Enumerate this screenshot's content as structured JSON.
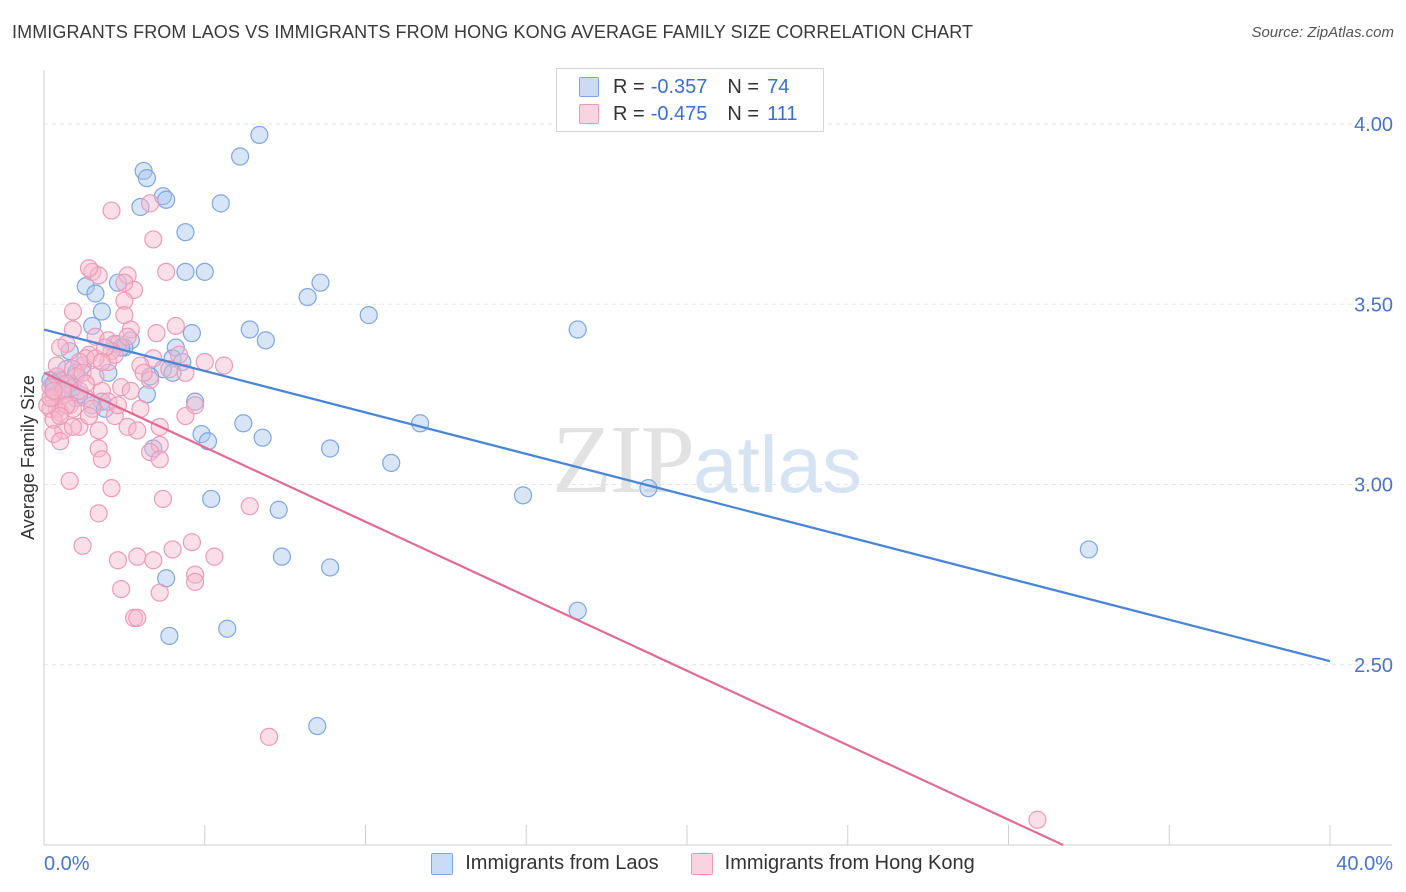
{
  "header": {
    "title": "IMMIGRANTS FROM LAOS VS IMMIGRANTS FROM HONG KONG AVERAGE FAMILY SIZE CORRELATION CHART",
    "source": "Source: ZipAtlas.com"
  },
  "watermark": {
    "zip": "ZIP",
    "atlas": "atlas"
  },
  "legend": {
    "rows": [
      {
        "r_label": "R =",
        "r_value": "-0.357",
        "n_label": "N =",
        "n_value": "74",
        "color": "#a9c6ee"
      },
      {
        "r_label": "R =",
        "r_value": "-0.475",
        "n_label": "N =",
        "n_value": "111",
        "color": "#f6b7cc"
      }
    ]
  },
  "bottom_legend": {
    "items": [
      {
        "label": "Immigrants from Laos",
        "color": "#a9c6ee"
      },
      {
        "label": "Immigrants from Hong Kong",
        "color": "#f6b7cc"
      }
    ]
  },
  "chart_data": {
    "type": "scatter",
    "title": "IMMIGRANTS FROM LAOS VS IMMIGRANTS FROM HONG KONG AVERAGE FAMILY SIZE CORRELATION CHART",
    "xlabel": "",
    "ylabel": "Average Family Size",
    "xlim": [
      0,
      40
    ],
    "ylim": [
      2.0,
      4.15
    ],
    "x_tick_labels": [
      "0.0%",
      "40.0%"
    ],
    "y_ticks": [
      2.5,
      3.0,
      3.5,
      4.0
    ],
    "y_tick_labels": [
      "2.50",
      "3.00",
      "3.50",
      "4.00"
    ],
    "grid": true,
    "series": [
      {
        "name": "Immigrants from Laos",
        "color": "#4a86d6",
        "fill": "#a9c6ee",
        "trend": {
          "x": [
            0,
            40
          ],
          "y": [
            3.43,
            2.51
          ]
        },
        "points": [
          [
            6.7,
            3.97
          ],
          [
            6.1,
            3.91
          ],
          [
            3.1,
            3.87
          ],
          [
            3.2,
            3.85
          ],
          [
            3.7,
            3.8
          ],
          [
            3.8,
            3.79
          ],
          [
            5.5,
            3.78
          ],
          [
            3.0,
            3.77
          ],
          [
            4.4,
            3.7
          ],
          [
            5.0,
            3.59
          ],
          [
            4.4,
            3.59
          ],
          [
            8.6,
            3.56
          ],
          [
            2.3,
            3.56
          ],
          [
            1.3,
            3.55
          ],
          [
            1.6,
            3.53
          ],
          [
            8.2,
            3.52
          ],
          [
            10.1,
            3.47
          ],
          [
            1.8,
            3.48
          ],
          [
            1.5,
            3.44
          ],
          [
            6.4,
            3.43
          ],
          [
            16.6,
            3.43
          ],
          [
            4.6,
            3.42
          ],
          [
            6.9,
            3.4
          ],
          [
            2.7,
            3.4
          ],
          [
            2.2,
            3.39
          ],
          [
            2.5,
            3.38
          ],
          [
            4.1,
            3.38
          ],
          [
            0.8,
            3.37
          ],
          [
            4.0,
            3.35
          ],
          [
            4.3,
            3.34
          ],
          [
            1.2,
            3.33
          ],
          [
            0.7,
            3.32
          ],
          [
            3.7,
            3.32
          ],
          [
            1.0,
            3.31
          ],
          [
            2.0,
            3.31
          ],
          [
            4.0,
            3.31
          ],
          [
            0.4,
            3.3
          ],
          [
            0.2,
            3.29
          ],
          [
            0.5,
            3.29
          ],
          [
            0.8,
            3.28
          ],
          [
            0.3,
            3.27
          ],
          [
            0.6,
            3.26
          ],
          [
            0.4,
            3.25
          ],
          [
            3.2,
            3.25
          ],
          [
            1.0,
            3.24
          ],
          [
            1.8,
            3.23
          ],
          [
            4.7,
            3.23
          ],
          [
            1.5,
            3.22
          ],
          [
            1.9,
            3.21
          ],
          [
            6.2,
            3.17
          ],
          [
            11.7,
            3.17
          ],
          [
            4.9,
            3.14
          ],
          [
            6.8,
            3.13
          ],
          [
            5.1,
            3.12
          ],
          [
            8.9,
            3.1
          ],
          [
            3.4,
            3.1
          ],
          [
            10.8,
            3.06
          ],
          [
            18.8,
            2.99
          ],
          [
            14.9,
            2.97
          ],
          [
            5.2,
            2.96
          ],
          [
            7.3,
            2.93
          ],
          [
            32.5,
            2.82
          ],
          [
            7.4,
            2.8
          ],
          [
            8.9,
            2.77
          ],
          [
            3.8,
            2.74
          ],
          [
            16.6,
            2.65
          ],
          [
            5.7,
            2.6
          ],
          [
            3.9,
            2.58
          ],
          [
            8.5,
            2.33
          ],
          [
            0.3,
            3.28
          ],
          [
            0.9,
            3.27
          ],
          [
            2.4,
            3.38
          ],
          [
            3.3,
            3.3
          ],
          [
            1.1,
            3.25
          ]
        ]
      },
      {
        "name": "Immigrants from Hong Kong",
        "color": "#e06b93",
        "fill": "#f6b7cc",
        "trend": {
          "x": [
            0,
            31.7
          ],
          "y": [
            3.31,
            2.0
          ]
        },
        "points": [
          [
            2.1,
            3.76
          ],
          [
            3.3,
            3.78
          ],
          [
            3.4,
            3.68
          ],
          [
            1.5,
            3.59
          ],
          [
            2.6,
            3.58
          ],
          [
            3.8,
            3.59
          ],
          [
            1.7,
            3.58
          ],
          [
            1.4,
            3.6
          ],
          [
            2.8,
            3.54
          ],
          [
            2.5,
            3.51
          ],
          [
            0.9,
            3.48
          ],
          [
            2.5,
            3.47
          ],
          [
            4.1,
            3.44
          ],
          [
            0.9,
            3.43
          ],
          [
            2.7,
            3.43
          ],
          [
            1.6,
            3.41
          ],
          [
            2.0,
            3.4
          ],
          [
            2.3,
            3.39
          ],
          [
            0.7,
            3.39
          ],
          [
            0.5,
            3.38
          ],
          [
            2.1,
            3.37
          ],
          [
            1.4,
            3.36
          ],
          [
            1.3,
            3.35
          ],
          [
            2.0,
            3.34
          ],
          [
            3.4,
            3.35
          ],
          [
            5.0,
            3.34
          ],
          [
            3.0,
            3.33
          ],
          [
            1.1,
            3.34
          ],
          [
            5.6,
            3.33
          ],
          [
            0.9,
            3.32
          ],
          [
            3.9,
            3.32
          ],
          [
            1.6,
            3.35
          ],
          [
            4.4,
            3.31
          ],
          [
            1.0,
            3.3
          ],
          [
            0.4,
            3.3
          ],
          [
            3.3,
            3.29
          ],
          [
            0.7,
            3.28
          ],
          [
            2.4,
            3.27
          ],
          [
            0.2,
            3.27
          ],
          [
            1.8,
            3.26
          ],
          [
            0.6,
            3.25
          ],
          [
            1.3,
            3.24
          ],
          [
            0.3,
            3.24
          ],
          [
            2.0,
            3.23
          ],
          [
            0.8,
            3.22
          ],
          [
            0.4,
            3.21
          ],
          [
            3.0,
            3.21
          ],
          [
            0.2,
            3.21
          ],
          [
            1.5,
            3.21
          ],
          [
            0.5,
            3.2
          ],
          [
            2.2,
            3.19
          ],
          [
            4.4,
            3.19
          ],
          [
            4.7,
            3.22
          ],
          [
            0.3,
            3.18
          ],
          [
            2.6,
            3.16
          ],
          [
            1.1,
            3.16
          ],
          [
            3.6,
            3.16
          ],
          [
            0.6,
            3.15
          ],
          [
            2.9,
            3.15
          ],
          [
            1.7,
            3.15
          ],
          [
            0.3,
            3.14
          ],
          [
            0.5,
            3.12
          ],
          [
            3.6,
            3.11
          ],
          [
            1.7,
            3.1
          ],
          [
            3.3,
            3.09
          ],
          [
            3.6,
            3.07
          ],
          [
            1.8,
            3.07
          ],
          [
            0.8,
            3.01
          ],
          [
            2.1,
            2.99
          ],
          [
            3.7,
            2.96
          ],
          [
            6.4,
            2.94
          ],
          [
            1.7,
            2.92
          ],
          [
            4.6,
            2.84
          ],
          [
            1.2,
            2.83
          ],
          [
            4.0,
            2.82
          ],
          [
            5.3,
            2.8
          ],
          [
            2.9,
            2.8
          ],
          [
            2.3,
            2.79
          ],
          [
            3.4,
            2.79
          ],
          [
            4.7,
            2.75
          ],
          [
            4.7,
            2.73
          ],
          [
            2.4,
            2.71
          ],
          [
            3.6,
            2.7
          ],
          [
            2.8,
            2.63
          ],
          [
            2.9,
            2.63
          ],
          [
            7.0,
            2.3
          ],
          [
            30.9,
            2.07
          ],
          [
            0.1,
            3.22
          ],
          [
            0.9,
            3.21
          ],
          [
            1.2,
            3.31
          ],
          [
            2.2,
            3.36
          ],
          [
            0.6,
            3.26
          ],
          [
            1.4,
            3.19
          ],
          [
            3.5,
            3.42
          ],
          [
            2.7,
            3.26
          ],
          [
            0.4,
            3.33
          ],
          [
            1.9,
            3.38
          ],
          [
            2.5,
            3.56
          ],
          [
            0.7,
            3.22
          ],
          [
            1.1,
            3.26
          ],
          [
            3.1,
            3.31
          ],
          [
            1.6,
            3.3
          ],
          [
            0.2,
            3.24
          ],
          [
            2.3,
            3.22
          ],
          [
            0.9,
            3.16
          ],
          [
            1.3,
            3.28
          ],
          [
            4.2,
            3.36
          ],
          [
            0.5,
            3.19
          ],
          [
            1.8,
            3.34
          ],
          [
            2.6,
            3.41
          ],
          [
            0.3,
            3.26
          ]
        ]
      }
    ]
  }
}
